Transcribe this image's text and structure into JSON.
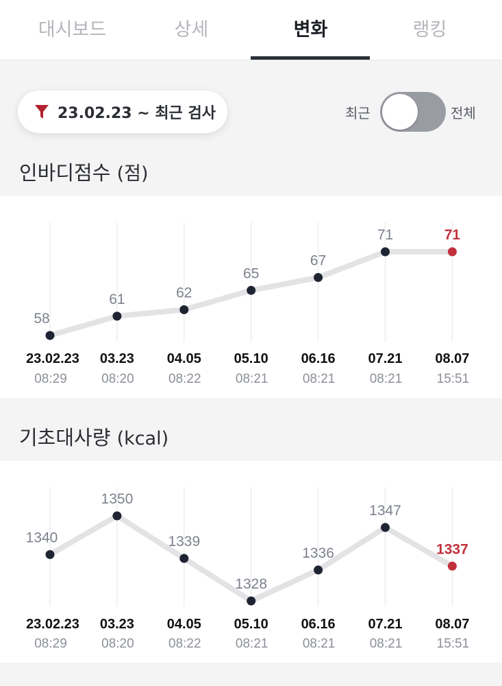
{
  "tabs": [
    {
      "label": "대시보드",
      "active": false
    },
    {
      "label": "상세",
      "active": false
    },
    {
      "label": "변화",
      "active": true
    },
    {
      "label": "랭킹",
      "active": false
    }
  ],
  "filter": {
    "label": "23.02.23 ~ 최근 검사",
    "icon": "funnel-icon",
    "icon_color": "#b3212f"
  },
  "toggle": {
    "left_label": "최근",
    "right_label": "전체",
    "state": "최근"
  },
  "sections": [
    {
      "title": "인바디점수",
      "unit": "(점)"
    },
    {
      "title": "기초대사량",
      "unit": "(kcal)"
    }
  ],
  "colors": {
    "line": "#e3e3e6",
    "point": "#1f2432",
    "highlight": "#c0313d",
    "grid": "#eeeeef"
  },
  "chart_data": [
    {
      "type": "line",
      "categories": [
        "23.02.23",
        "03.23",
        "04.05",
        "05.10",
        "06.16",
        "07.21",
        "08.07"
      ],
      "times": [
        "08:29",
        "08:20",
        "08:22",
        "08:21",
        "08:21",
        "08:21",
        "15:51"
      ],
      "values": [
        58,
        61,
        62,
        65,
        67,
        71,
        71
      ],
      "ylim": [
        58,
        71
      ],
      "highlight_index": 6,
      "grid": true
    },
    {
      "type": "line",
      "categories": [
        "23.02.23",
        "03.23",
        "04.05",
        "05.10",
        "06.16",
        "07.21",
        "08.07"
      ],
      "times": [
        "08:29",
        "08:20",
        "08:22",
        "08:21",
        "08:21",
        "08:21",
        "15:51"
      ],
      "values": [
        1340,
        1350,
        1339,
        1328,
        1336,
        1347,
        1337
      ],
      "ylim": [
        1328,
        1350
      ],
      "highlight_index": 6,
      "grid": true
    }
  ]
}
